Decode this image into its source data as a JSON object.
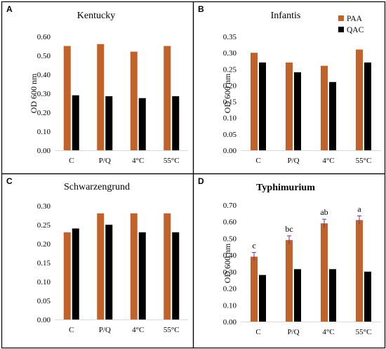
{
  "colors": {
    "PAA": "#C0622A",
    "QAC": "#000000",
    "frame": "#000000",
    "errorbar": "#7030A0"
  },
  "legend": [
    {
      "name": "PAA",
      "color": "#C0622A"
    },
    {
      "name": "QAC",
      "color": "#000000"
    }
  ],
  "chart_data": [
    {
      "type": "bar",
      "panel": "A",
      "title": "Kentucky",
      "title_bold": false,
      "ylabel": "OD 600 nm",
      "ylim": [
        0,
        0.6
      ],
      "yticks": [
        "0.00",
        "0.10",
        "0.20",
        "0.30",
        "0.40",
        "0.50",
        "0.60"
      ],
      "categories": [
        "C",
        "P/Q",
        "4°C",
        "55°C"
      ],
      "series": [
        {
          "name": "PAA",
          "values": [
            0.55,
            0.56,
            0.52,
            0.55
          ]
        },
        {
          "name": "QAC",
          "values": [
            0.29,
            0.285,
            0.275,
            0.285
          ]
        }
      ],
      "annotations": [],
      "legend": false
    },
    {
      "type": "bar",
      "panel": "B",
      "title": "Infantis",
      "title_bold": false,
      "ylabel": "OD 600 nm",
      "ylim": [
        0,
        0.35
      ],
      "yticks": [
        "0.00",
        "0.05",
        "0.10",
        "0.15",
        "0.20",
        "0.25",
        "0.30",
        "0.35"
      ],
      "categories": [
        "C",
        "P/Q",
        "4°C",
        "55°C"
      ],
      "series": [
        {
          "name": "PAA",
          "values": [
            0.3,
            0.27,
            0.26,
            0.31
          ]
        },
        {
          "name": "QAC",
          "values": [
            0.27,
            0.24,
            0.21,
            0.27
          ]
        }
      ],
      "annotations": [],
      "legend": true
    },
    {
      "type": "bar",
      "panel": "C",
      "title": "Schwarzengrund",
      "title_bold": false,
      "ylabel": "",
      "ylim": [
        0,
        0.3
      ],
      "yticks": [
        "0.00",
        "0.05",
        "0.10",
        "0.15",
        "0.20",
        "0.25",
        "0.30"
      ],
      "categories": [
        "C",
        "P/Q",
        "4°C",
        "55°C"
      ],
      "series": [
        {
          "name": "PAA",
          "values": [
            0.23,
            0.28,
            0.28,
            0.28
          ]
        },
        {
          "name": "QAC",
          "values": [
            0.24,
            0.25,
            0.23,
            0.23
          ]
        }
      ],
      "annotations": [],
      "legend": false
    },
    {
      "type": "bar",
      "panel": "D",
      "title": "Typhimurium",
      "title_bold": true,
      "ylabel": "OD 600 nm",
      "ylim": [
        0,
        0.7
      ],
      "yticks": [
        "0.00",
        "0.10",
        "0.20",
        "0.30",
        "0.40",
        "0.50",
        "0.60",
        "0.70"
      ],
      "categories": [
        "C",
        "P/Q",
        "4°C",
        "55°C"
      ],
      "series": [
        {
          "name": "PAA",
          "values": [
            0.39,
            0.49,
            0.59,
            0.61
          ],
          "errors": [
            0.025,
            0.025,
            0.025,
            0.025
          ]
        },
        {
          "name": "QAC",
          "values": [
            0.28,
            0.315,
            0.315,
            0.3
          ]
        }
      ],
      "annotations": [
        "c",
        "bc",
        "ab",
        "a"
      ],
      "legend": false
    }
  ]
}
